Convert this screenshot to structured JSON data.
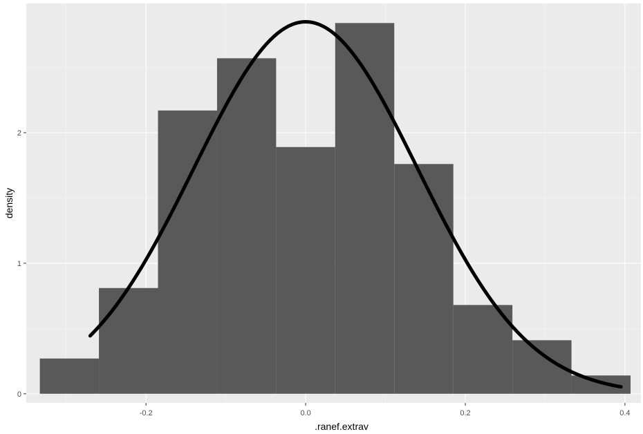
{
  "chart_data": {
    "type": "histogram",
    "title": "",
    "xlabel": ".ranef.extrav",
    "ylabel": "density",
    "xlim": [
      -0.35,
      0.42
    ],
    "ylim": [
      -0.07,
      2.99
    ],
    "x_ticks": [
      -0.2,
      0.0,
      0.2,
      0.4
    ],
    "x_tick_labels": [
      "-0.2",
      "0.0",
      "0.2",
      "0.4"
    ],
    "y_ticks": [
      0,
      1,
      2
    ],
    "y_tick_labels": [
      "0",
      "1",
      "2"
    ],
    "grid": true,
    "legend": "none",
    "bins": [
      {
        "x0": -0.333,
        "x1": -0.259,
        "density": 0.27
      },
      {
        "x0": -0.259,
        "x1": -0.185,
        "density": 0.81
      },
      {
        "x0": -0.185,
        "x1": -0.111,
        "density": 2.17
      },
      {
        "x0": -0.111,
        "x1": -0.037,
        "density": 2.57
      },
      {
        "x0": -0.037,
        "x1": 0.037,
        "density": 1.89
      },
      {
        "x0": 0.037,
        "x1": 0.111,
        "density": 2.84
      },
      {
        "x0": 0.111,
        "x1": 0.185,
        "density": 1.76
      },
      {
        "x0": 0.185,
        "x1": 0.259,
        "density": 0.68
      },
      {
        "x0": 0.259,
        "x1": 0.333,
        "density": 0.41
      },
      {
        "x0": 0.333,
        "x1": 0.407,
        "density": 0.14
      }
    ],
    "density_curve": {
      "type": "normal",
      "mean": 0.0,
      "sd": 0.14,
      "x_range": [
        -0.27,
        0.395
      ]
    },
    "colors": {
      "panel_background": "#ebebeb",
      "grid_major": "#ffffff",
      "grid_minor": "#f5f5f5",
      "bar_fill": "#595959",
      "curve": "#000000",
      "tick_label": "#4d4d4d",
      "tick_mark": "#333333"
    }
  }
}
